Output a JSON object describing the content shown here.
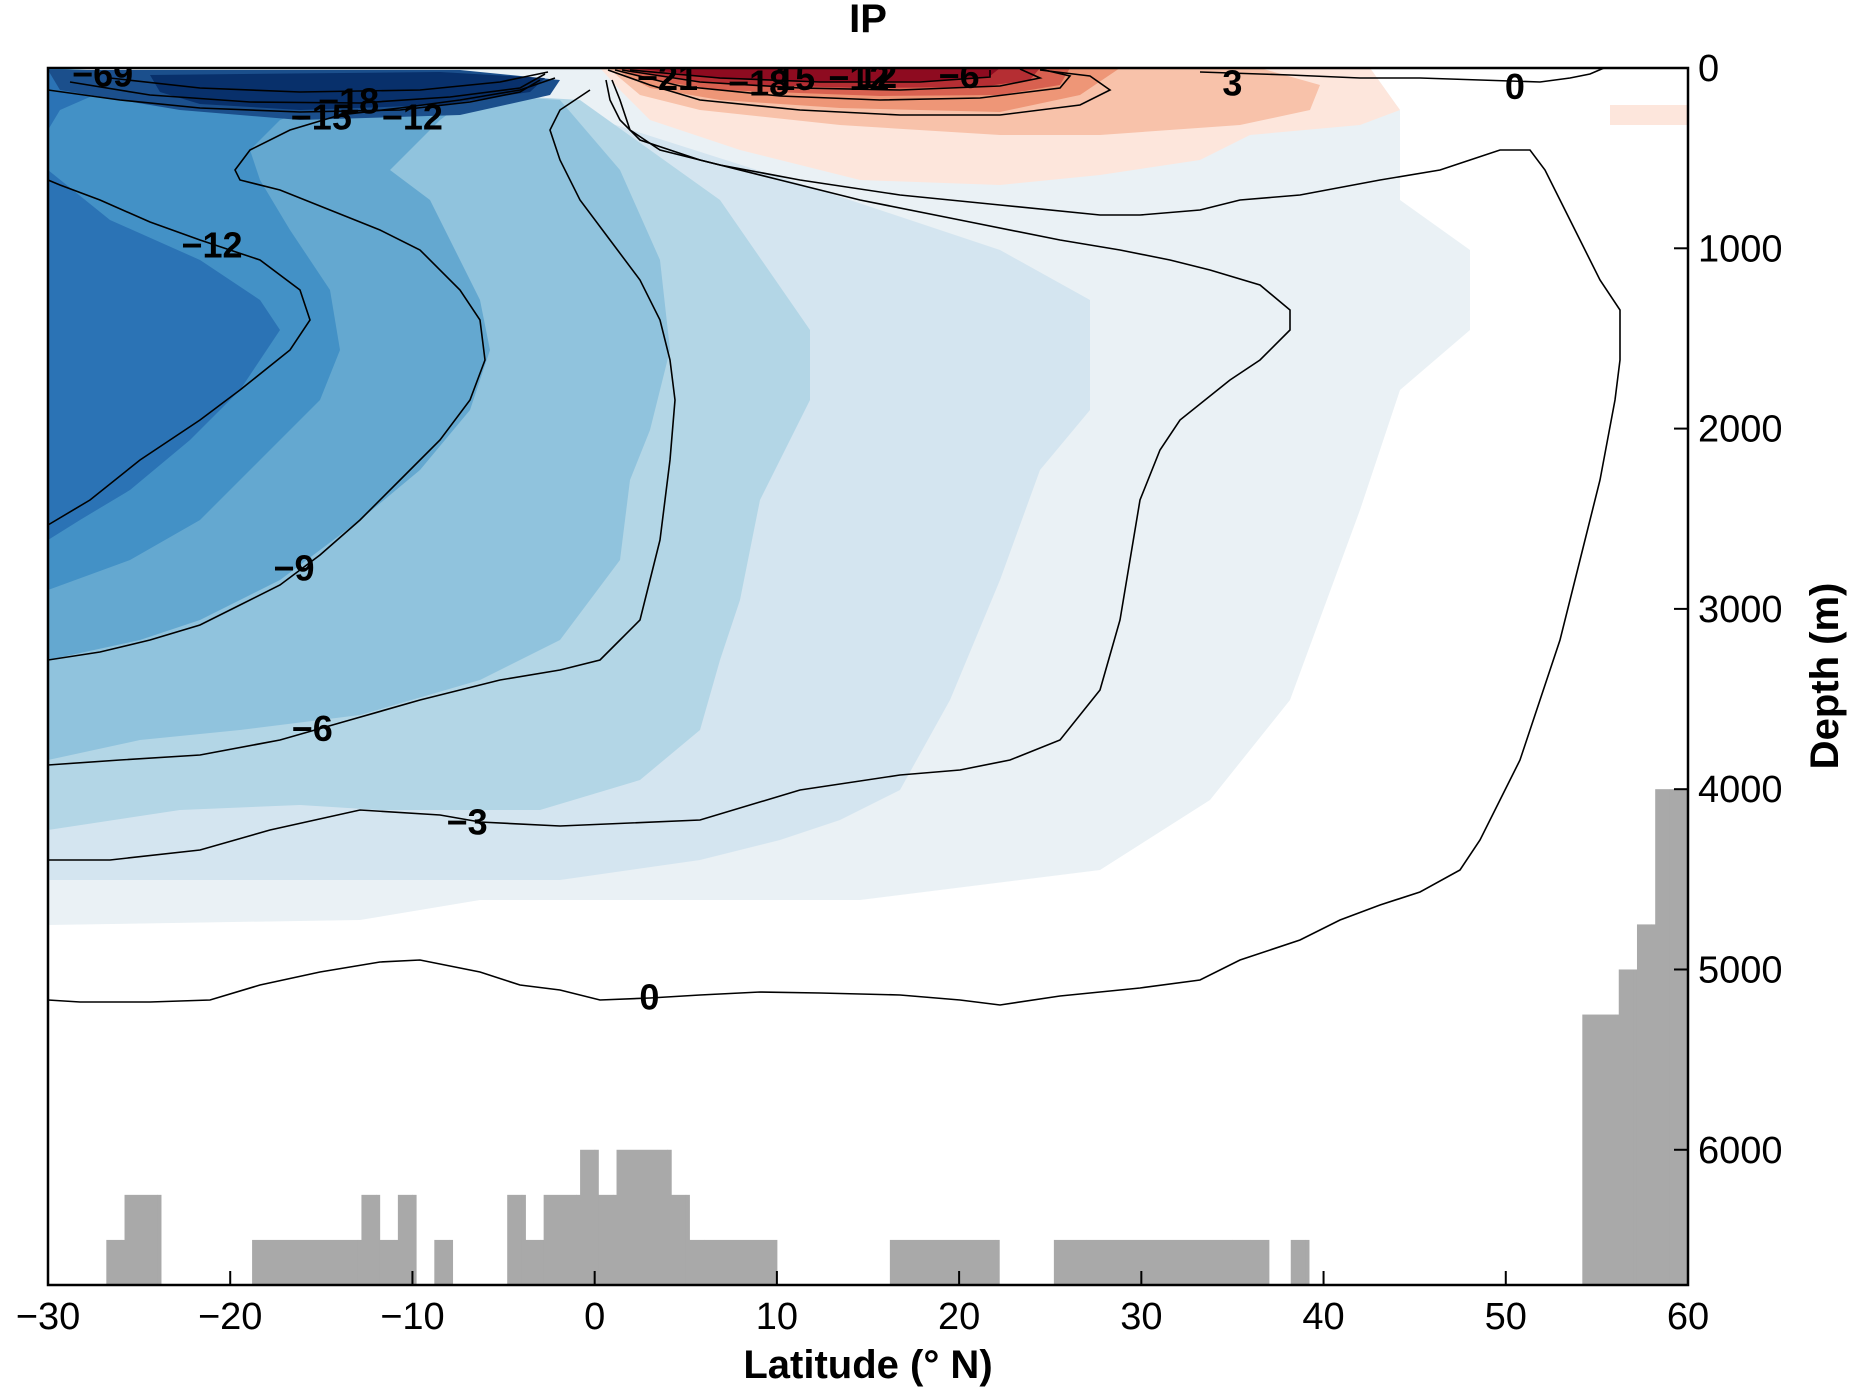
{
  "chart_data": {
    "type": "heatmap",
    "subtype": "filled-contour overturning streamfunction with bathymetry",
    "title": "IP",
    "xlabel": "Latitude (° N)",
    "ylabel": "Depth (m)",
    "xlim": [
      -30,
      60
    ],
    "ylim": [
      6750,
      0
    ],
    "x_ticks": [
      -30,
      -20,
      -10,
      0,
      10,
      20,
      30,
      40,
      50,
      60
    ],
    "x_tick_labels": [
      "−30",
      "−20",
      "−10",
      "0",
      "10",
      "20",
      "30",
      "40",
      "50",
      "60"
    ],
    "y_ticks": [
      0,
      1000,
      2000,
      3000,
      4000,
      5000,
      6000
    ],
    "y_tick_labels": [
      "0",
      "1000",
      "2000",
      "3000",
      "4000",
      "5000",
      "6000"
    ],
    "contour_interval": 3,
    "contour_levels": [
      -21,
      -18,
      -15,
      -12,
      -9,
      -6,
      -3,
      0,
      3,
      6,
      9,
      12,
      15,
      18,
      21
    ],
    "colors": {
      "neg_3": "#eaf1f5",
      "neg_6": "#d4e5f0",
      "neg_9": "#b3d6e6",
      "neg_12": "#90c3dd",
      "neg_15": "#64a8d0",
      "neg_18": "#4391c6",
      "neg_21": "#2b73b5",
      "neg_deep": "#1b4f8c",
      "neg_core": "#08306b",
      "pos_3": "#fde6dc",
      "pos_6": "#f8c2aa",
      "pos_9": "#ee9677",
      "pos_12": "#d86150",
      "pos_15": "#b52e33",
      "pos_18": "#8e0b20",
      "bathymetry": "#a9a9a9"
    },
    "contour_labels": [
      {
        "text": "−69",
        "lat": -27,
        "depth": 30
      },
      {
        "text": "−18",
        "lat": -13.5,
        "depth": 180
      },
      {
        "text": "−15",
        "lat": -15,
        "depth": 270
      },
      {
        "text": "−12",
        "lat": -10,
        "depth": 270
      },
      {
        "text": "−12",
        "lat": -21,
        "depth": 980
      },
      {
        "text": "−9",
        "lat": -16.5,
        "depth": 2770
      },
      {
        "text": "−6",
        "lat": -15.5,
        "depth": 3660
      },
      {
        "text": "−3",
        "lat": -7,
        "depth": 4180
      },
      {
        "text": "0",
        "lat": 3,
        "depth": 5150
      },
      {
        "text": "−21",
        "lat": 4,
        "depth": 50
      },
      {
        "text": "−18",
        "lat": 9,
        "depth": 80
      },
      {
        "text": "15",
        "lat": 11,
        "depth": 50
      },
      {
        "text": "−12",
        "lat": 14.5,
        "depth": 50
      },
      {
        "text": "12",
        "lat": 15.5,
        "depth": 40
      },
      {
        "text": "−6",
        "lat": 20,
        "depth": 40
      },
      {
        "text": "3",
        "lat": 35,
        "depth": 80
      },
      {
        "text": "0",
        "lat": 50.5,
        "depth": 100
      }
    ],
    "bathymetry_depth_m": [
      [
        -26.8,
        6500
      ],
      [
        -26.0,
        6500
      ],
      [
        -25.8,
        6250
      ],
      [
        -24.0,
        6250
      ],
      [
        -23.8,
        6750
      ],
      [
        -21.0,
        6750
      ],
      [
        -20.8,
        6750
      ],
      [
        -19.9,
        6750
      ],
      [
        -19.8,
        6750
      ],
      [
        -18.8,
        6500
      ],
      [
        -13.0,
        6500
      ],
      [
        -12.8,
        6250
      ],
      [
        -12.0,
        6250
      ],
      [
        -11.8,
        6500
      ],
      [
        -11.0,
        6500
      ],
      [
        -10.8,
        6250
      ],
      [
        -10.0,
        6250
      ],
      [
        -9.8,
        6750
      ],
      [
        -8.8,
        6500
      ],
      [
        -8.0,
        6500
      ],
      [
        -7.8,
        6750
      ],
      [
        -7.0,
        6750
      ],
      [
        -4.8,
        6750
      ],
      [
        -4.8,
        6250
      ],
      [
        -4.0,
        6250
      ],
      [
        -3.8,
        6500
      ],
      [
        -3.0,
        6500
      ],
      [
        -2.8,
        6250
      ],
      [
        -1.0,
        6250
      ],
      [
        -0.8,
        6000
      ],
      [
        0.0,
        6000
      ],
      [
        0.2,
        6250
      ],
      [
        1.0,
        6250
      ],
      [
        1.2,
        6000
      ],
      [
        4.0,
        6000
      ],
      [
        4.2,
        6250
      ],
      [
        5.0,
        6250
      ],
      [
        5.2,
        6500
      ],
      [
        6.0,
        6500
      ],
      [
        10.0,
        6750
      ],
      [
        11.0,
        6750
      ],
      [
        14.0,
        6750
      ],
      [
        16.0,
        6750
      ],
      [
        16.2,
        6500
      ],
      [
        22.0,
        6500
      ],
      [
        22.2,
        6750
      ],
      [
        25.0,
        6750
      ],
      [
        25.2,
        6500
      ],
      [
        27.0,
        6500
      ],
      [
        35.0,
        6500
      ],
      [
        36.0,
        6500
      ],
      [
        37.0,
        6750
      ],
      [
        38.0,
        6750
      ],
      [
        38.2,
        6500
      ],
      [
        39.0,
        6500
      ],
      [
        39.2,
        6750
      ],
      [
        42.0,
        6750
      ],
      [
        50.0,
        6750
      ],
      [
        51.0,
        6750
      ],
      [
        52.0,
        6750
      ],
      [
        54.0,
        6750
      ],
      [
        54.2,
        5250
      ],
      [
        56.0,
        5250
      ],
      [
        56.2,
        5000
      ],
      [
        57.0,
        5000
      ],
      [
        57.2,
        4750
      ],
      [
        58.0,
        4750
      ],
      [
        58.2,
        4000
      ],
      [
        59.0,
        4000
      ],
      [
        59.2,
        4000
      ],
      [
        60.0,
        4000
      ]
    ]
  }
}
